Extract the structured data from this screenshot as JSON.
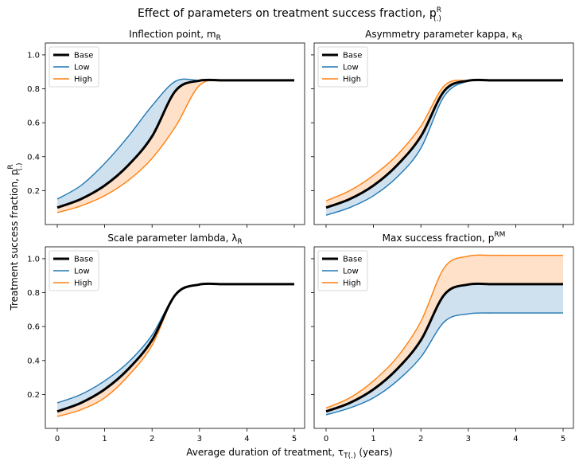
{
  "figure": {
    "title": "Effect of parameters on treatment success fraction, p",
    "title_sup": "R",
    "title_sub": "(.)",
    "ylabel": "Treatment success fraction, p",
    "ylabel_sup": "R",
    "ylabel_sub": "(.)",
    "xlabel": "Average duration of treatment, τ",
    "xlabel_sub": "T(.)",
    "xlabel_suffix": " (years)"
  },
  "colors": {
    "base": "#000000",
    "low": "#1f77b4",
    "high": "#ff7f0e",
    "low_fill": "#cfe1ef",
    "high_fill": "#ffe0c8"
  },
  "chart_data": [
    {
      "type": "line",
      "title": "Inflection point, m",
      "title_sub": "R",
      "xlim": [
        0,
        5
      ],
      "ylim": [
        0,
        1.07
      ],
      "x_ticks": [
        "0",
        "1",
        "2",
        "3",
        "4",
        "5"
      ],
      "y_ticks": [
        "0.2",
        "0.4",
        "0.6",
        "0.8",
        "1.0"
      ],
      "legend": "top-left",
      "x": [
        0,
        0.5,
        1,
        1.5,
        2,
        2.5,
        3,
        3.5,
        4,
        4.5,
        5
      ],
      "series": [
        {
          "name": "Base",
          "values": [
            0.1,
            0.15,
            0.23,
            0.35,
            0.52,
            0.79,
            0.848,
            0.85,
            0.85,
            0.85,
            0.85
          ]
        },
        {
          "name": "Low",
          "values": [
            0.15,
            0.23,
            0.36,
            0.52,
            0.7,
            0.845,
            0.85,
            0.85,
            0.85,
            0.85,
            0.85
          ]
        },
        {
          "name": "High",
          "values": [
            0.07,
            0.11,
            0.17,
            0.26,
            0.39,
            0.58,
            0.82,
            0.848,
            0.85,
            0.85,
            0.85
          ]
        }
      ]
    },
    {
      "type": "line",
      "title": "Asymmetry parameter kappa, κ",
      "title_sub": "R",
      "xlim": [
        0,
        5
      ],
      "ylim": [
        0,
        1.07
      ],
      "x_ticks": [
        "0",
        "1",
        "2",
        "3",
        "4",
        "5"
      ],
      "y_ticks": [
        "0.2",
        "0.4",
        "0.6",
        "0.8",
        "1.0"
      ],
      "legend": "top-left",
      "x": [
        0,
        0.5,
        1,
        1.5,
        2,
        2.5,
        3,
        3.5,
        4,
        4.5,
        5
      ],
      "series": [
        {
          "name": "Base",
          "values": [
            0.1,
            0.15,
            0.23,
            0.35,
            0.52,
            0.79,
            0.848,
            0.85,
            0.85,
            0.85,
            0.85
          ]
        },
        {
          "name": "Low",
          "values": [
            0.055,
            0.1,
            0.17,
            0.28,
            0.45,
            0.76,
            0.845,
            0.85,
            0.85,
            0.85,
            0.85
          ]
        },
        {
          "name": "High",
          "values": [
            0.14,
            0.2,
            0.29,
            0.41,
            0.58,
            0.82,
            0.85,
            0.85,
            0.85,
            0.85,
            0.85
          ]
        }
      ]
    },
    {
      "type": "line",
      "title": "Scale parameter lambda, λ",
      "title_sub": "R",
      "xlim": [
        0,
        5
      ],
      "ylim": [
        0,
        1.07
      ],
      "x_ticks": [
        "0",
        "1",
        "2",
        "3",
        "4",
        "5"
      ],
      "y_ticks": [
        "0.2",
        "0.4",
        "0.6",
        "0.8",
        "1.0"
      ],
      "legend": "top-left",
      "x": [
        0,
        0.5,
        1,
        1.5,
        2,
        2.5,
        3,
        3.5,
        4,
        4.5,
        5
      ],
      "series": [
        {
          "name": "Base",
          "values": [
            0.1,
            0.15,
            0.23,
            0.35,
            0.52,
            0.79,
            0.848,
            0.85,
            0.85,
            0.85,
            0.85
          ]
        },
        {
          "name": "Low",
          "values": [
            0.15,
            0.2,
            0.28,
            0.39,
            0.55,
            0.79,
            0.845,
            0.85,
            0.85,
            0.85,
            0.85
          ]
        },
        {
          "name": "High",
          "values": [
            0.07,
            0.11,
            0.18,
            0.31,
            0.49,
            0.79,
            0.85,
            0.85,
            0.85,
            0.85,
            0.85
          ]
        }
      ]
    },
    {
      "type": "line",
      "title": "Max success fraction, p",
      "title_sup": "RM",
      "xlim": [
        0,
        5
      ],
      "ylim": [
        0,
        1.07
      ],
      "x_ticks": [
        "0",
        "1",
        "2",
        "3",
        "4",
        "5"
      ],
      "y_ticks": [
        "0.2",
        "0.4",
        "0.6",
        "0.8",
        "1.0"
      ],
      "legend": "top-left",
      "x": [
        0,
        0.5,
        1,
        1.5,
        2,
        2.5,
        3,
        3.5,
        4,
        4.5,
        5
      ],
      "series": [
        {
          "name": "Base",
          "values": [
            0.1,
            0.15,
            0.23,
            0.35,
            0.52,
            0.79,
            0.848,
            0.85,
            0.85,
            0.85,
            0.85
          ]
        },
        {
          "name": "Low",
          "values": [
            0.08,
            0.12,
            0.18,
            0.28,
            0.42,
            0.63,
            0.675,
            0.68,
            0.68,
            0.68,
            0.68
          ]
        },
        {
          "name": "High",
          "values": [
            0.12,
            0.18,
            0.28,
            0.42,
            0.63,
            0.95,
            1.015,
            1.02,
            1.02,
            1.02,
            1.02
          ]
        }
      ]
    }
  ]
}
